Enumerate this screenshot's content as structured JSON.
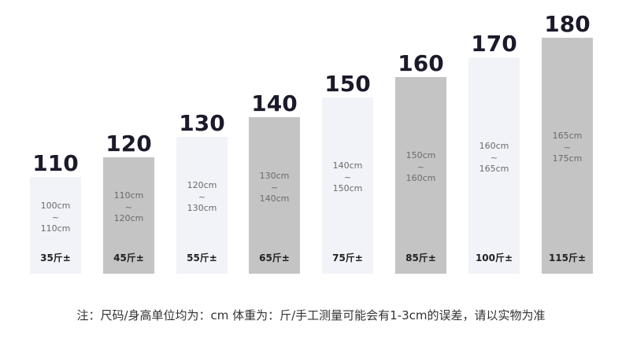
{
  "chart_data": {
    "type": "bar",
    "categories": [
      "110",
      "120",
      "130",
      "140",
      "150",
      "160",
      "170",
      "180"
    ],
    "values": [
      110,
      120,
      130,
      140,
      150,
      160,
      170,
      180
    ],
    "ranges": [
      {
        "from": "100cm",
        "sep": "~",
        "to": "110cm"
      },
      {
        "from": "110cm",
        "sep": "~",
        "to": "120cm"
      },
      {
        "from": "120cm",
        "sep": "~",
        "to": "130cm"
      },
      {
        "from": "130cm",
        "sep": "~",
        "to": "140cm"
      },
      {
        "from": "140cm",
        "sep": "~",
        "to": "150cm"
      },
      {
        "from": "150cm",
        "sep": "~",
        "to": "160cm"
      },
      {
        "from": "160cm",
        "sep": "~",
        "to": "165cm"
      },
      {
        "from": "165cm",
        "sep": "~",
        "to": "175cm"
      }
    ],
    "weights": [
      "35斤±",
      "45斤±",
      "55斤±",
      "65斤±",
      "75斤±",
      "85斤±",
      "100斤±",
      "115斤±"
    ],
    "bar_colors": [
      "#f2f3f8",
      "#c4c4c4",
      "#f2f3f8",
      "#c4c4c4",
      "#f2f3f8",
      "#c4c4c4",
      "#f2f3f8",
      "#c4c4c4"
    ]
  },
  "note": "注：尺码/身高单位均为：cm 体重为：斤/手工测量可能会有1-3cm的误差，请以实物为准"
}
